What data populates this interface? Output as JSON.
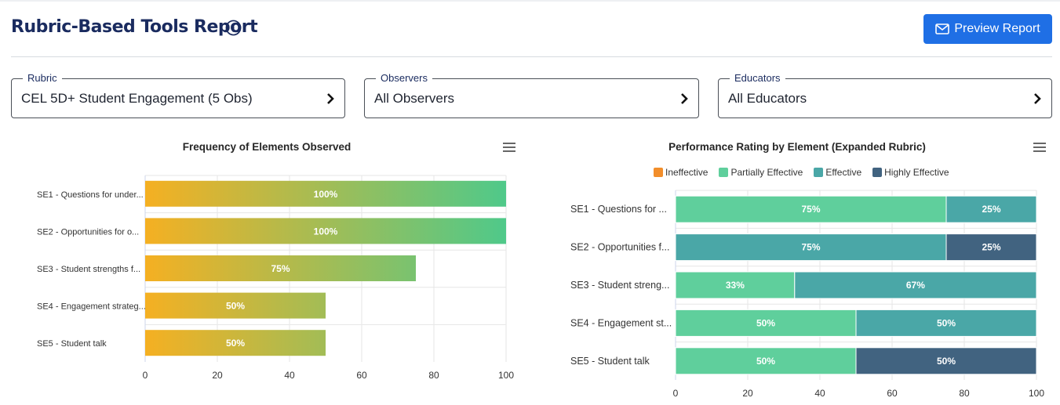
{
  "header": {
    "title": "Rubric-Based Tools Report",
    "preview_label": "Preview Report"
  },
  "filters": {
    "rubric": {
      "label": "Rubric",
      "value": "CEL 5D+ Student Engagement (5 Obs)"
    },
    "observers": {
      "label": "Observers",
      "value": "All Observers"
    },
    "educators": {
      "label": "Educators",
      "value": "All Educators"
    }
  },
  "colors": {
    "accent": "#1f6fe5",
    "gradient_start": "#f5b022",
    "gradient_end": "#4fc98a",
    "ineffective": "#f28e2b",
    "partially_effective": "#5fcf9c",
    "effective": "#4aa7a7",
    "highly_effective": "#416380"
  },
  "chart_data": [
    {
      "type": "bar",
      "orientation": "horizontal",
      "title": "Frequency of Elements Observed",
      "categories": [
        "SE1 - Questions for under...",
        "SE2 - Opportunities for o...",
        "SE3 - Student strengths f...",
        "SE4 - Engagement strateg...",
        "SE5 - Student talk"
      ],
      "values": [
        100,
        100,
        75,
        50,
        50
      ],
      "data_labels": [
        "100%",
        "100%",
        "75%",
        "50%",
        "50%"
      ],
      "xlim": [
        0,
        100
      ],
      "xticks": [
        "0",
        "20",
        "40",
        "60",
        "80",
        "100"
      ],
      "grid": true
    },
    {
      "type": "bar",
      "orientation": "horizontal",
      "stacked": true,
      "title": "Performance Rating by Element (Expanded Rubric)",
      "categories": [
        "SE1 - Questions for ...",
        "SE2 - Opportunities f...",
        "SE3 - Student streng...",
        "SE4 - Engagement st...",
        "SE5 - Student talk"
      ],
      "legend": [
        "Ineffective",
        "Partially Effective",
        "Effective",
        "Highly Effective"
      ],
      "legend_position": "top",
      "series": [
        {
          "name": "Ineffective",
          "values": [
            0,
            0,
            0,
            0,
            0
          ]
        },
        {
          "name": "Partially Effective",
          "values": [
            75,
            0,
            33,
            50,
            50
          ]
        },
        {
          "name": "Effective",
          "values": [
            25,
            75,
            67,
            50,
            0
          ]
        },
        {
          "name": "Highly Effective",
          "values": [
            0,
            25,
            0,
            0,
            50
          ]
        }
      ],
      "xlim": [
        0,
        100
      ],
      "xticks": [
        "0",
        "20",
        "40",
        "60",
        "80",
        "100"
      ],
      "grid": true
    }
  ]
}
